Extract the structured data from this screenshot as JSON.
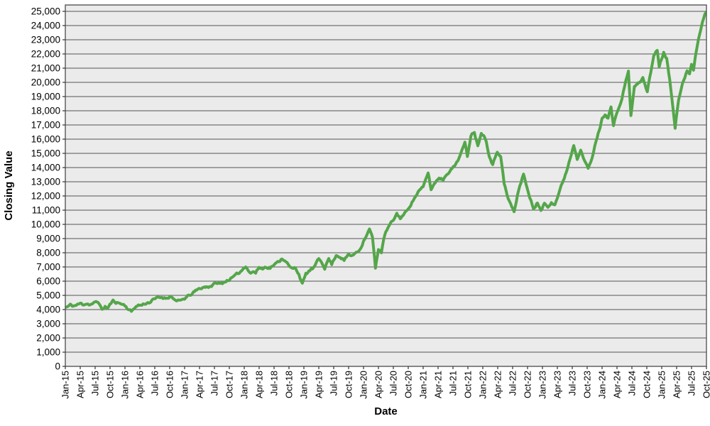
{
  "page": {
    "background": "#ffffff"
  },
  "chart_data": {
    "type": "line",
    "title": "",
    "xlabel": "Date",
    "ylabel": "Closing Value",
    "legend": "none",
    "grid": "horizontal",
    "x_unit": "months since Jan-2015, tick every 3 months",
    "xlim": [
      0,
      129
    ],
    "ylim": [
      0,
      25450
    ],
    "x_tick_step_months": 3,
    "x_tick_labels": [
      "Jan-15",
      "Apr-15",
      "Jul-15",
      "Oct-15",
      "Jan-16",
      "Apr-16",
      "Jul-16",
      "Oct-16",
      "Jan-17",
      "Apr-17",
      "Jul-17",
      "Oct-17",
      "Jan-18",
      "Apr-18",
      "Jul-18",
      "Oct-18",
      "Jan-19",
      "Apr-19",
      "Jul-19",
      "Oct-19",
      "Jan-20",
      "Apr-20",
      "Jul-20",
      "Oct-20",
      "Jan-21",
      "Apr-21",
      "Jul-21",
      "Oct-21",
      "Jan-22",
      "Apr-22",
      "Jul-22",
      "Oct-22",
      "Jan-23",
      "Apr-23",
      "Jul-23",
      "Oct-23",
      "Jan-24",
      "Apr-24",
      "Jul-24",
      "Oct-24",
      "Jan-25",
      "Apr-25",
      "Jul-25",
      "Oct-25"
    ],
    "y_tick_labels": [
      "0",
      "1,000",
      "2,000",
      "3,000",
      "4,000",
      "5,000",
      "6,000",
      "7,000",
      "8,000",
      "9,000",
      "10,000",
      "11,000",
      "12,000",
      "13,000",
      "14,000",
      "15,000",
      "16,000",
      "17,000",
      "18,000",
      "19,000",
      "20,000",
      "21,000",
      "22,000",
      "23,000",
      "24,000",
      "25,000"
    ],
    "y_tick_interval": 1000,
    "plot_bg": "#ebebeb",
    "grid_color": "#747474",
    "border_color": "#4a4a4a",
    "tick_color": "#333333",
    "text_color": "#000000",
    "series": [
      {
        "name": "Closing Value",
        "color": "#54a64a",
        "stroke_width": 4,
        "daily_noise_amplitude": 150,
        "noise_seed": 11,
        "points": [
          [
            0,
            4150
          ],
          [
            0.5,
            4200
          ],
          [
            1,
            4320
          ],
          [
            1.6,
            4250
          ],
          [
            2.2,
            4300
          ],
          [
            3,
            4420
          ],
          [
            3.6,
            4380
          ],
          [
            4.3,
            4430
          ],
          [
            5,
            4350
          ],
          [
            5.7,
            4450
          ],
          [
            6.4,
            4520
          ],
          [
            7,
            4380
          ],
          [
            7.4,
            3950
          ],
          [
            8,
            4220
          ],
          [
            8.5,
            4080
          ],
          [
            9.2,
            4450
          ],
          [
            9.6,
            4600
          ],
          [
            10.4,
            4500
          ],
          [
            11.2,
            4420
          ],
          [
            12,
            4300
          ],
          [
            12.6,
            4050
          ],
          [
            13.3,
            3850
          ],
          [
            14,
            4180
          ],
          [
            14.7,
            4300
          ],
          [
            15.4,
            4320
          ],
          [
            16.2,
            4450
          ],
          [
            17,
            4520
          ],
          [
            17.8,
            4700
          ],
          [
            18.6,
            4830
          ],
          [
            19.4,
            4870
          ],
          [
            20.2,
            4800
          ],
          [
            21,
            4930
          ],
          [
            21.7,
            4830
          ],
          [
            22.4,
            4550
          ],
          [
            23.2,
            4620
          ],
          [
            24,
            4780
          ],
          [
            24.8,
            4950
          ],
          [
            25.6,
            5150
          ],
          [
            26.4,
            5350
          ],
          [
            27.2,
            5500
          ],
          [
            28,
            5580
          ],
          [
            28.8,
            5620
          ],
          [
            29.6,
            5700
          ],
          [
            30.4,
            5880
          ],
          [
            31.2,
            5800
          ],
          [
            32,
            5950
          ],
          [
            33,
            6130
          ],
          [
            34,
            6320
          ],
          [
            35,
            6600
          ],
          [
            35.6,
            6800
          ],
          [
            36.3,
            7100
          ],
          [
            36.8,
            6800
          ],
          [
            37.3,
            6550
          ],
          [
            37.8,
            6700
          ],
          [
            38.3,
            6580
          ],
          [
            39,
            6980
          ],
          [
            39.7,
            6870
          ],
          [
            40.4,
            7020
          ],
          [
            41.2,
            6950
          ],
          [
            42,
            7150
          ],
          [
            42.8,
            7320
          ],
          [
            43.6,
            7600
          ],
          [
            44.4,
            7450
          ],
          [
            45.1,
            7000
          ],
          [
            45.7,
            6850
          ],
          [
            46.3,
            6950
          ],
          [
            47,
            6500
          ],
          [
            47.7,
            5800
          ],
          [
            48.4,
            6480
          ],
          [
            49.2,
            6750
          ],
          [
            50,
            6950
          ],
          [
            51,
            7550
          ],
          [
            51.6,
            7350
          ],
          [
            52.2,
            6950
          ],
          [
            53,
            7580
          ],
          [
            53.6,
            7200
          ],
          [
            54.5,
            7850
          ],
          [
            55.3,
            7720
          ],
          [
            56.1,
            7450
          ],
          [
            57,
            7900
          ],
          [
            57.7,
            7750
          ],
          [
            58.5,
            8050
          ],
          [
            59.3,
            8250
          ],
          [
            60.2,
            9000
          ],
          [
            61.2,
            9650
          ],
          [
            61.8,
            9100
          ],
          [
            62.4,
            6900
          ],
          [
            63,
            8300
          ],
          [
            63.6,
            8050
          ],
          [
            64.3,
            9300
          ],
          [
            65.1,
            9850
          ],
          [
            66,
            10300
          ],
          [
            66.7,
            10750
          ],
          [
            67.4,
            10450
          ],
          [
            68.2,
            10700
          ],
          [
            69,
            11150
          ],
          [
            70,
            11700
          ],
          [
            71,
            12300
          ],
          [
            72,
            12600
          ],
          [
            73,
            13650
          ],
          [
            73.6,
            12450
          ],
          [
            74.4,
            12950
          ],
          [
            75.2,
            13300
          ],
          [
            76,
            13150
          ],
          [
            76.8,
            13600
          ],
          [
            77.6,
            13850
          ],
          [
            78.3,
            14100
          ],
          [
            79,
            14550
          ],
          [
            79.7,
            15100
          ],
          [
            80.4,
            15700
          ],
          [
            80.9,
            14800
          ],
          [
            81.6,
            16300
          ],
          [
            82.3,
            16550
          ],
          [
            83,
            15500
          ],
          [
            83.7,
            16500
          ],
          [
            84.2,
            16250
          ],
          [
            84.7,
            15900
          ],
          [
            85.3,
            14850
          ],
          [
            86,
            14200
          ],
          [
            86.9,
            15150
          ],
          [
            87.6,
            14850
          ],
          [
            88.3,
            12850
          ],
          [
            89.1,
            11800
          ],
          [
            90.3,
            10880
          ],
          [
            91.2,
            12380
          ],
          [
            92.2,
            13600
          ],
          [
            93.2,
            12150
          ],
          [
            94.2,
            11100
          ],
          [
            95,
            11550
          ],
          [
            95.7,
            10900
          ],
          [
            96.4,
            11480
          ],
          [
            97.1,
            11230
          ],
          [
            97.8,
            11620
          ],
          [
            98.5,
            11400
          ],
          [
            99.2,
            12100
          ],
          [
            100,
            12900
          ],
          [
            100.8,
            13700
          ],
          [
            101.6,
            14700
          ],
          [
            102.3,
            15600
          ],
          [
            103,
            14680
          ],
          [
            103.7,
            15320
          ],
          [
            104.5,
            14420
          ],
          [
            105.2,
            13950
          ],
          [
            106,
            14620
          ],
          [
            106.8,
            15900
          ],
          [
            107.4,
            16600
          ],
          [
            108,
            17400
          ],
          [
            108.6,
            17800
          ],
          [
            109.2,
            17500
          ],
          [
            109.8,
            18250
          ],
          [
            110.3,
            16900
          ],
          [
            111,
            17900
          ],
          [
            112,
            18800
          ],
          [
            112.8,
            20200
          ],
          [
            113.3,
            20750
          ],
          [
            113.8,
            17650
          ],
          [
            114.5,
            19700
          ],
          [
            115.3,
            19900
          ],
          [
            116.2,
            20300
          ],
          [
            117.1,
            19400
          ],
          [
            117.8,
            20700
          ],
          [
            118.4,
            21900
          ],
          [
            119.1,
            22300
          ],
          [
            119.5,
            21150
          ],
          [
            120.4,
            22150
          ],
          [
            121,
            21700
          ],
          [
            121.6,
            20200
          ],
          [
            122.1,
            18800
          ],
          [
            122.7,
            16900
          ],
          [
            123.4,
            18700
          ],
          [
            124.2,
            19900
          ],
          [
            125.1,
            20900
          ],
          [
            125.6,
            20650
          ],
          [
            126,
            21350
          ],
          [
            126.4,
            20850
          ],
          [
            127,
            22300
          ],
          [
            127.6,
            23400
          ],
          [
            128.2,
            24200
          ],
          [
            128.7,
            24800
          ],
          [
            129,
            24950
          ]
        ]
      }
    ]
  }
}
